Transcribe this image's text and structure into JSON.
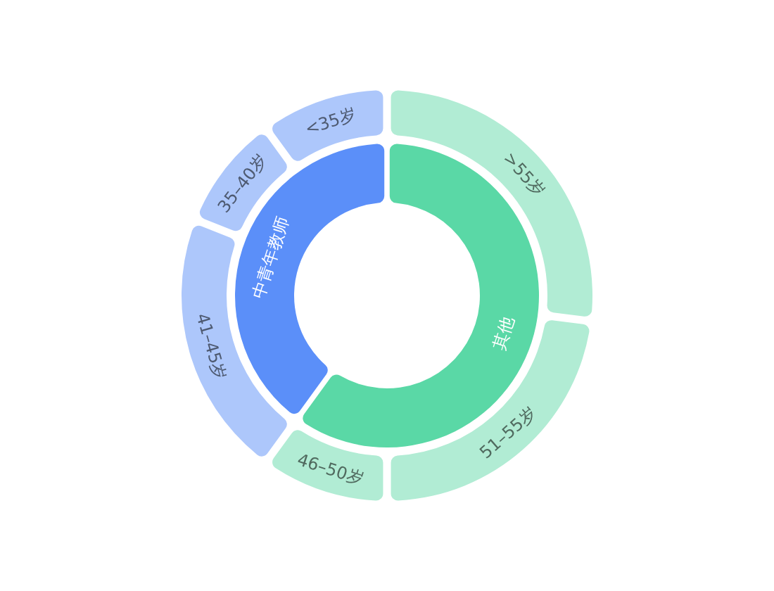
{
  "chart_data": [
    {
      "type": "donut",
      "categories": [
        "其他",
        "中青年教师"
      ],
      "values": [
        60,
        40
      ],
      "colors": [
        "#5ad8a6",
        "#5b8ff9"
      ]
    },
    {
      "type": "donut",
      "categories": [
        ">55岁",
        "51–55岁",
        "46–50岁",
        "41–45岁",
        "35–40岁",
        "<35岁"
      ],
      "values": [
        27,
        23,
        10,
        21,
        9,
        10
      ],
      "colors": [
        "#b1ecd4",
        "#b1ecd4",
        "#b1ecd4",
        "#adc7fb",
        "#adc7fb",
        "#adc7fb"
      ]
    }
  ]
}
